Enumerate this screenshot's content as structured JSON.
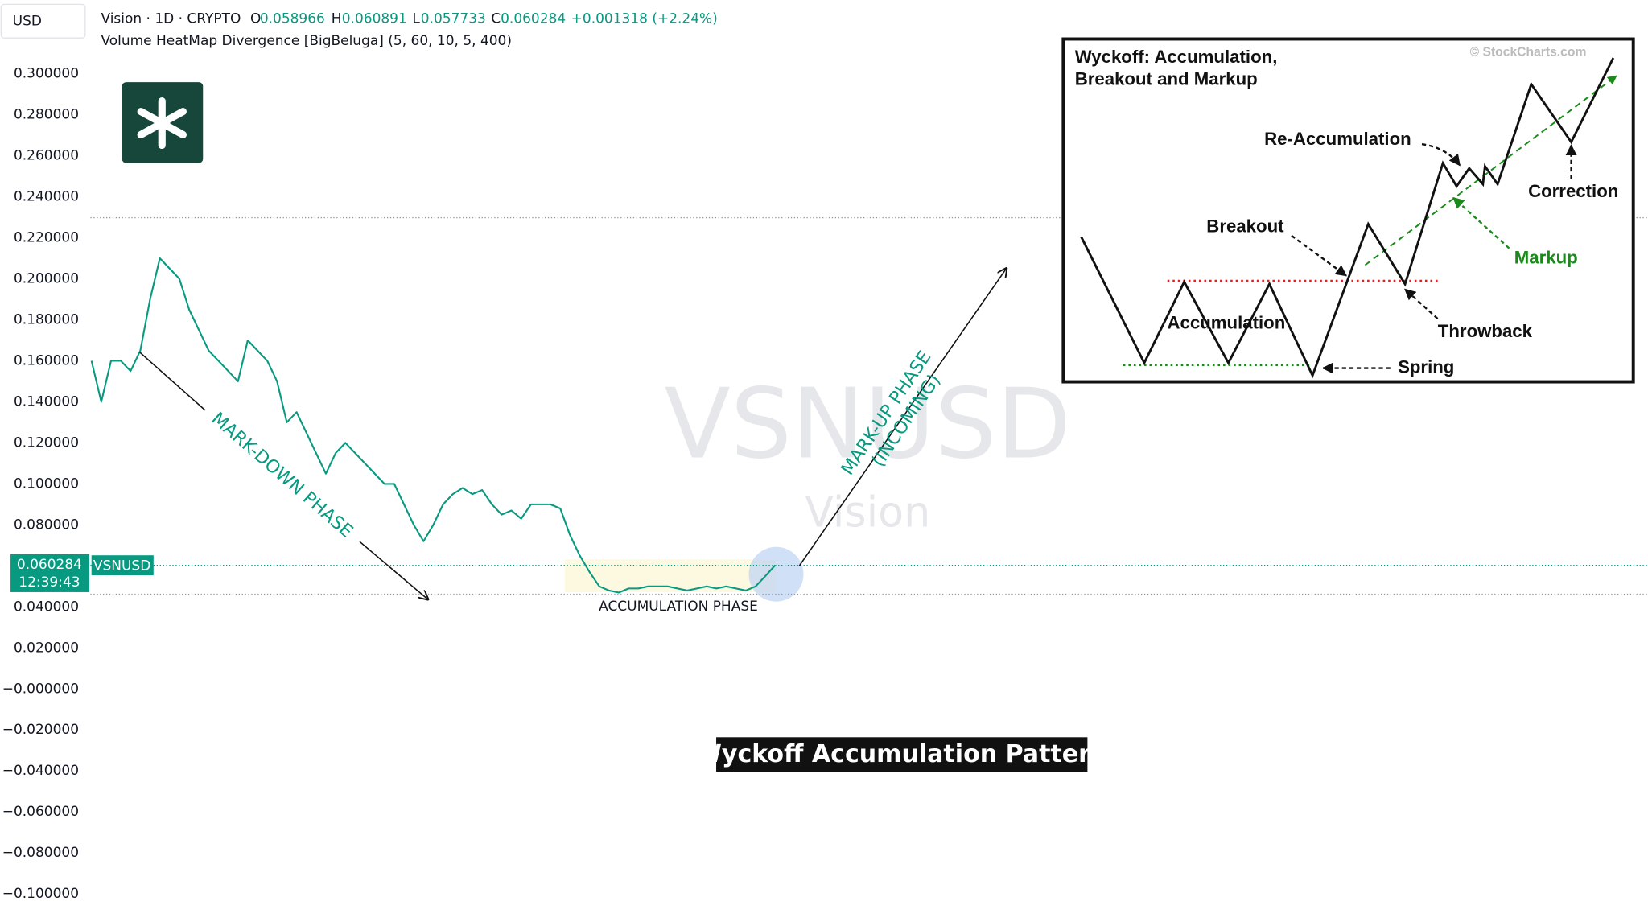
{
  "chart_data": {
    "type": "line",
    "header": {
      "currency": "USD",
      "symbol_line": "Vision · 1D · CRYPTO",
      "open_label": "O",
      "open": 0.058966,
      "high_label": "H",
      "high": 0.060891,
      "low_label": "L",
      "low": 0.057733,
      "close_label": "C",
      "close": 0.060284,
      "change": "+0.001318 (+2.24%)",
      "indicator": "Volume HeatMap Divergence [BigBeluga] (5, 60, 10, 5, 400)"
    },
    "last_price": {
      "price": 0.060284,
      "countdown": "12:39:43",
      "symbol": "VSNUSD"
    },
    "values": [
      0.16,
      0.14,
      0.16,
      0.16,
      0.155,
      0.165,
      0.19,
      0.21,
      0.205,
      0.2,
      0.185,
      0.175,
      0.165,
      0.16,
      0.155,
      0.15,
      0.17,
      0.165,
      0.16,
      0.15,
      0.13,
      0.135,
      0.125,
      0.115,
      0.105,
      0.115,
      0.12,
      0.115,
      0.11,
      0.105,
      0.1,
      0.1,
      0.09,
      0.08,
      0.072,
      0.08,
      0.09,
      0.095,
      0.098,
      0.095,
      0.097,
      0.09,
      0.085,
      0.087,
      0.083,
      0.09,
      0.09,
      0.09,
      0.088,
      0.075,
      0.065,
      0.057,
      0.05,
      0.048,
      0.047,
      0.049,
      0.049,
      0.05,
      0.05,
      0.05,
      0.049,
      0.048,
      0.049,
      0.05,
      0.049,
      0.05,
      0.049,
      0.048,
      0.05,
      0.055,
      0.060284
    ],
    "color": "#089981",
    "ylim": [
      -0.1097,
      0.3359
    ],
    "yticks": [
      {
        "value": 0.3,
        "label": "0.300000"
      },
      {
        "value": 0.28,
        "label": "0.280000"
      },
      {
        "value": 0.26,
        "label": "0.260000"
      },
      {
        "value": 0.24,
        "label": "0.240000"
      },
      {
        "value": 0.22,
        "label": "0.220000"
      },
      {
        "value": 0.2,
        "label": "0.200000"
      },
      {
        "value": 0.18,
        "label": "0.180000"
      },
      {
        "value": 0.16,
        "label": "0.160000"
      },
      {
        "value": 0.14,
        "label": "0.140000"
      },
      {
        "value": 0.12,
        "label": "0.120000"
      },
      {
        "value": 0.1,
        "label": "0.100000"
      },
      {
        "value": 0.08,
        "label": "0.080000"
      },
      {
        "value": 0.04,
        "label": "0.040000"
      },
      {
        "value": 0.02,
        "label": "0.020000"
      },
      {
        "value": 0,
        "label": "−0.000000"
      },
      {
        "value": -0.02,
        "label": "−0.020000"
      },
      {
        "value": -0.04,
        "label": "−0.040000"
      },
      {
        "value": -0.06,
        "label": "−0.060000"
      },
      {
        "value": -0.08,
        "label": "−0.080000"
      },
      {
        "value": -0.1,
        "label": "−0.100000"
      }
    ],
    "grid": false,
    "reference_lines": [
      {
        "value": 0.2298,
        "color": "#9a9a9a"
      },
      {
        "value": 0.060284,
        "color": "#089981"
      },
      {
        "value": 0.0462,
        "color": "#9a9a9a"
      }
    ],
    "annotations": {
      "markdown": "MARK-DOWN PHASE",
      "accumulation": "ACCUMULATION PHASE",
      "markup": "MARK-UP PHASE",
      "markup_note": "(INCOMING)",
      "pattern": "Wyckoff Accumulation Pattern",
      "watermark": "VSNUSD",
      "watermark_sub": "Vision"
    }
  },
  "inset": {
    "title_line1": "Wyckoff: Accumulation,",
    "title_line2": "Breakout and Markup",
    "credit": "© StockCharts.com",
    "labels": [
      "Re-Accumulation",
      "Correction",
      "Breakout",
      "Markup",
      "Accumulation",
      "Throwback",
      "Spring"
    ]
  }
}
